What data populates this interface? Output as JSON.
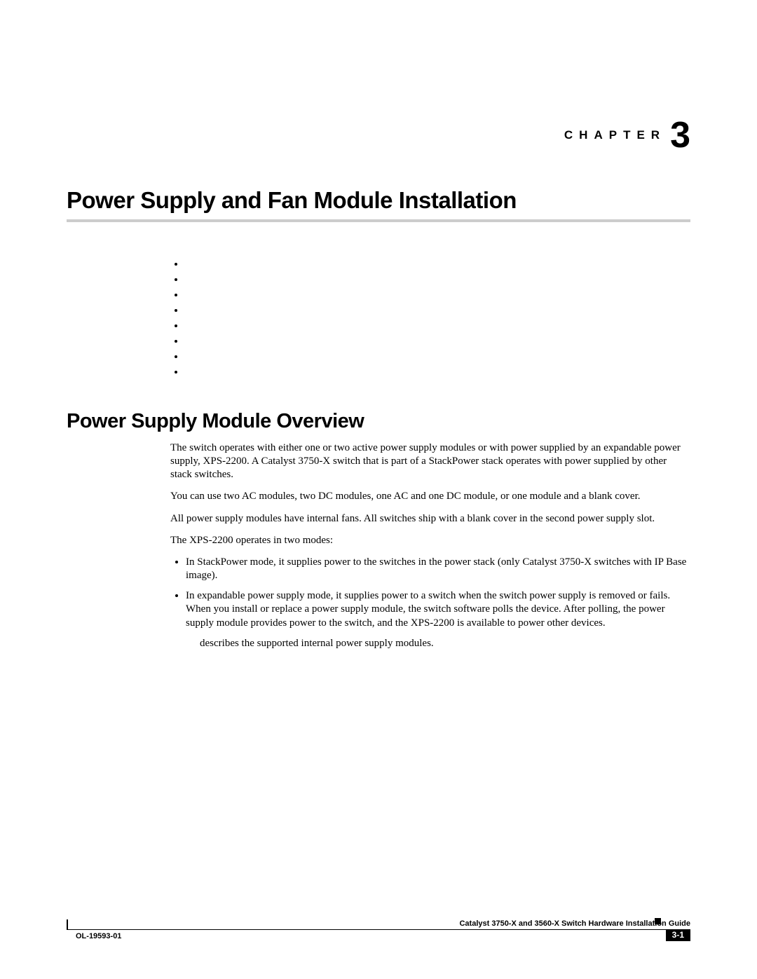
{
  "chapter": {
    "label": "CHAPTER",
    "number": "3"
  },
  "main_title": "Power Supply and Fan Module Installation",
  "empty_bullets_count": 8,
  "section_title": "Power Supply Module Overview",
  "paragraphs": {
    "p1": "The switch operates with either one or two active power supply modules or with power supplied by an expandable power supply, XPS-2200. A Catalyst 3750-X switch that is part of a StackPower stack operates with power supplied by other stack switches.",
    "p2": "You can use two AC modules, two DC modules, one AC and one DC module, or one module and a blank cover.",
    "p3": "All power supply modules have internal fans. All switches ship with a blank cover in the second power supply slot.",
    "p4": "The XPS-2200 operates in two modes:",
    "li1": "In StackPower mode, it supplies power to the switches in the power stack (only Catalyst 3750-X switches with IP Base image).",
    "li2": "In expandable power supply mode, it supplies power to a switch when the switch power supply is removed or fails. When you install or replace a power supply module, the switch software polls the device. After polling, the power supply module provides power to the switch, and the XPS-2200 is available to power other devices.",
    "tail": "describes the supported internal power supply modules."
  },
  "footer": {
    "doc_title": "Catalyst 3750-X and 3560-X Switch Hardware Installation Guide",
    "doc_id": "OL-19593-01",
    "page_num": "3-1"
  },
  "colors": {
    "rule_gray": "#cccccc",
    "text": "#000000",
    "bg": "#ffffff"
  }
}
